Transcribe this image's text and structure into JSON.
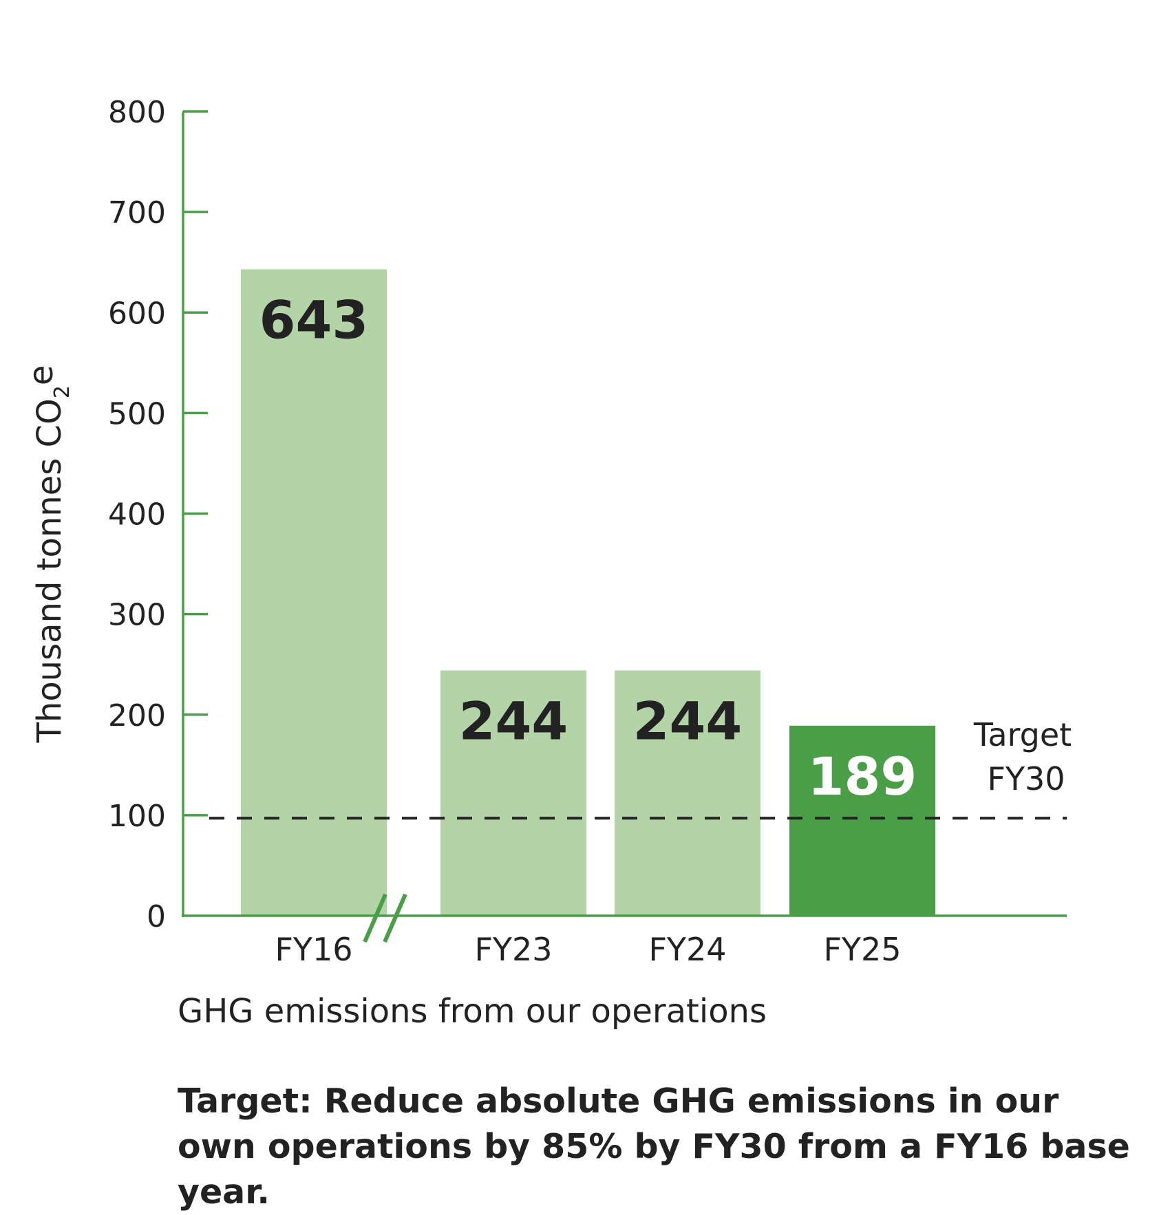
{
  "chart_data": {
    "type": "bar",
    "categories": [
      "FY16",
      "FY23",
      "FY24",
      "FY25"
    ],
    "values": [
      643,
      244,
      244,
      189
    ],
    "highlight_category": "FY25",
    "ylabel": "Thousand tonnes CO2e",
    "ylabel_parts": {
      "main": "Thousand tonnes CO",
      "subscript": "2",
      "suffix": "e"
    },
    "ylim": [
      0,
      800
    ],
    "yticks": [
      0,
      100,
      200,
      300,
      400,
      500,
      600,
      700,
      800
    ],
    "axis_break_after": "FY16",
    "reference_line": {
      "value": 97,
      "style": "dashed",
      "label_line1": "Target",
      "label_line2": "FY30"
    },
    "grid": false,
    "colors": {
      "axis": "#4b9e48",
      "bar": "#b2d4a7",
      "bar_highlight": "#4b9e48",
      "value_text": "#222222",
      "value_text_highlight": "#ffffff",
      "reference_line": "#222222"
    }
  },
  "title": "GHG emissions from our operations",
  "target_statement": "Target: Reduce absolute GHG emissions in our own operations by 85% by FY30 from a FY16 base year."
}
